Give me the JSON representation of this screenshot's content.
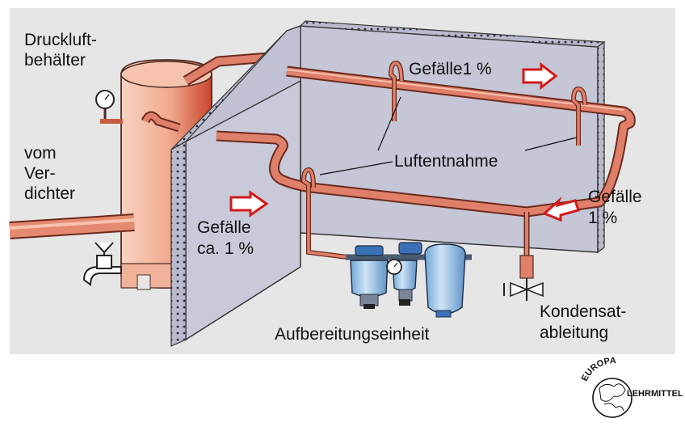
{
  "labels": {
    "druckluft_1": "Druckluft-",
    "druckluft_2": "behälter",
    "vom_1": "vom",
    "vom_2": "Ver-",
    "vom_3": "dichter",
    "gefaelle_top": "Gefälle1 %",
    "luftentnahme": "Luftentnahme",
    "gefaelle_right_1": "Gefälle",
    "gefaelle_right_2": "1 %",
    "gefaelle_left_1": "Gefälle",
    "gefaelle_left_2": "ca. 1 %",
    "aufbereitung": "Aufbereitungseinheit",
    "kondensat_1": "Kondensat-",
    "kondensat_2": "ableitung"
  },
  "logo": {
    "arc_text": "EUROPA",
    "side_text": "LEHRMITTEL"
  },
  "colors": {
    "background": "#e6e6e6",
    "wall": "#c9cad9",
    "wall_edge": "#8a8ba0",
    "pipe": "#e0806a",
    "pipe_outline": "#6b2a1c",
    "tank": "#f3b59c",
    "tank_dark": "#c8442b",
    "filter": "#9fc8ea",
    "arrow": "#d11a1a"
  }
}
